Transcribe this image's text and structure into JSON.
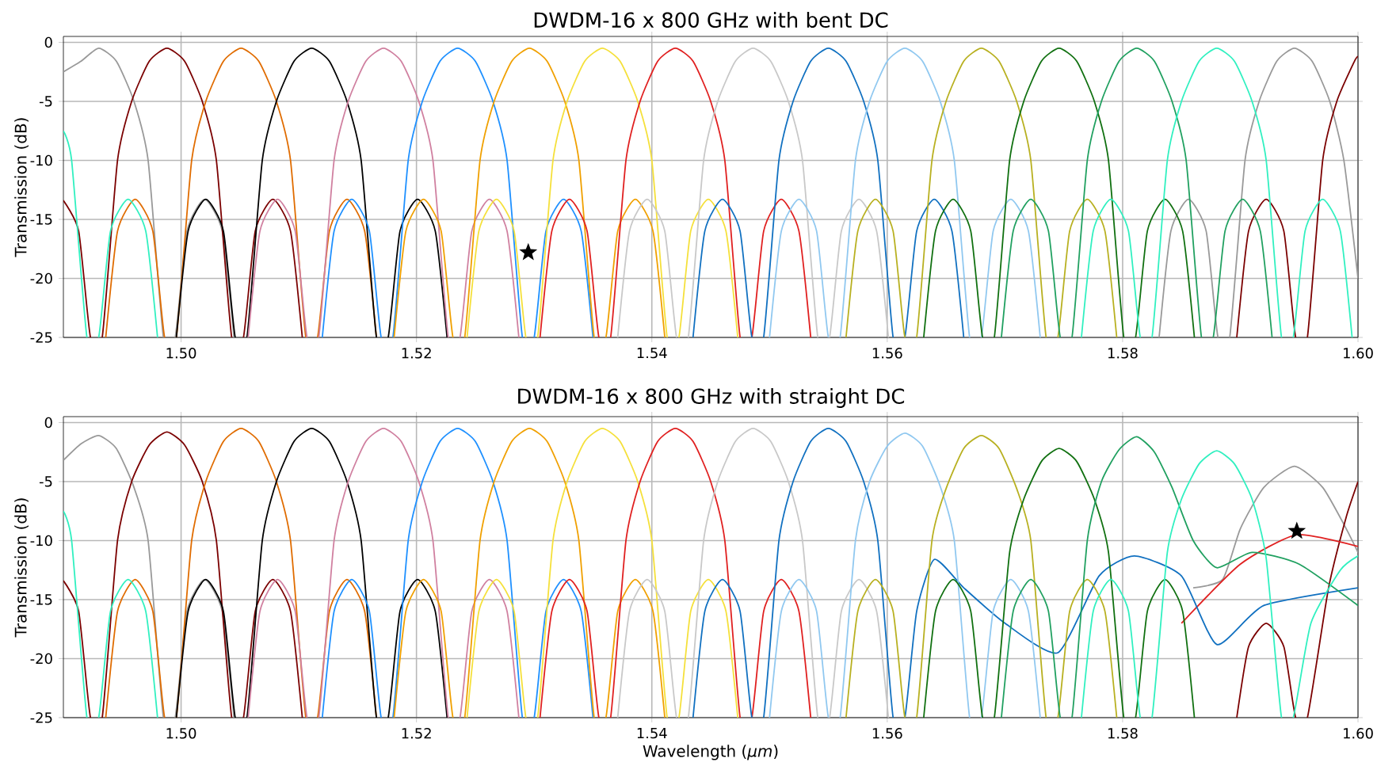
{
  "chart_data": [
    {
      "type": "line",
      "title": "DWDM-16 x 800 GHz with bent DC",
      "ylabel": "Transmission (dB)",
      "xlim": [
        1.49,
        1.6
      ],
      "ylim": [
        -25,
        0.5
      ],
      "xticks": [
        {
          "value": 1.5,
          "label": "1.50"
        },
        {
          "value": 1.52,
          "label": "1.52"
        },
        {
          "value": 1.54,
          "label": "1.54"
        },
        {
          "value": 1.56,
          "label": "1.56"
        },
        {
          "value": 1.58,
          "label": "1.58"
        },
        {
          "value": 1.6,
          "label": "1.60"
        }
      ],
      "yticks": [
        -25,
        -20,
        -15,
        -10,
        -5,
        0
      ],
      "grid": true,
      "line_style": "solid",
      "series": [
        {
          "color": "#999999",
          "x": [
            1.49,
            1.4915,
            1.493,
            1.4945,
            1.496,
            1.4972,
            1.4985,
            1.4995,
            1.5005,
            1.502,
            1.5035,
            1.5045,
            null,
            1.5831,
            1.5841,
            1.5856,
            1.5871,
            1.5881,
            1.5891,
            1.5904,
            1.5916,
            1.5931,
            1.5946,
            1.5961,
            1.5976,
            1.5988,
            1.6
          ],
          "values": [
            -2.5,
            -1.6,
            -0.5,
            -1.6,
            -5,
            -10,
            -25,
            -25,
            -16,
            -13.3,
            -16,
            -25,
            null,
            -25,
            -16,
            -13.3,
            -16,
            -25,
            -25,
            -10,
            -5,
            -1.6,
            -0.5,
            -1.6,
            -5,
            -10,
            -20
          ]
        },
        {
          "color": "#7b0000",
          "x": [
            1.49,
            1.4913,
            1.4923,
            1.4933,
            1.4946,
            1.4958,
            1.4973,
            1.4988,
            1.5003,
            1.5018,
            1.503,
            1.5043,
            1.5053,
            1.5063,
            1.5078,
            1.5093,
            1.5103,
            null,
            1.5897,
            1.5907,
            1.5922,
            1.5937,
            1.5947,
            1.5957,
            1.597,
            1.5982,
            1.5997,
            1.6
          ],
          "values": [
            -13.4,
            -16,
            -25,
            -25,
            -10,
            -5,
            -1.6,
            -0.5,
            -1.6,
            -5,
            -10,
            -25,
            -25,
            -16,
            -13.3,
            -16,
            -25,
            null,
            -25,
            -16,
            -13.3,
            -16,
            -25,
            -25,
            -10,
            -5,
            -1.6,
            -1.2
          ]
        },
        {
          "color": "#e06c00",
          "x": [
            1.4936,
            1.4946,
            1.4961,
            1.4976,
            1.4986,
            1.4996,
            1.5009,
            1.5021,
            1.5036,
            1.5051,
            1.5066,
            1.5081,
            1.5093,
            1.5106,
            1.5116,
            1.5126,
            1.5141,
            1.5156,
            1.5166
          ],
          "values": [
            -25,
            -16,
            -13.3,
            -16,
            -25,
            -25,
            -10,
            -5,
            -1.6,
            -0.5,
            -1.6,
            -5,
            -10,
            -25,
            -25,
            -16,
            -13.3,
            -16,
            -25
          ]
        },
        {
          "color": "#000000",
          "x": [
            1.4996,
            1.5006,
            1.5021,
            1.5036,
            1.5046,
            1.5056,
            1.5069,
            1.5081,
            1.5096,
            1.5111,
            1.5126,
            1.5141,
            1.5153,
            1.5166,
            1.5176,
            1.5186,
            1.5201,
            1.5216,
            1.5226
          ],
          "values": [
            -25,
            -16,
            -13.3,
            -16,
            -25,
            -25,
            -10,
            -5,
            -1.6,
            -0.5,
            -1.6,
            -5,
            -10,
            -25,
            -25,
            -16,
            -13.3,
            -16,
            -25
          ]
        },
        {
          "color": "#d080a0",
          "x": [
            1.5057,
            1.5067,
            1.5082,
            1.5097,
            1.5107,
            1.5117,
            1.513,
            1.5142,
            1.5157,
            1.5172,
            1.5187,
            1.5202,
            1.5214,
            1.5227,
            1.5237,
            1.5247,
            1.5262,
            1.5277,
            1.5287
          ],
          "values": [
            -25,
            -16,
            -13.3,
            -16,
            -25,
            -25,
            -10,
            -5,
            -1.6,
            -0.5,
            -1.6,
            -5,
            -10,
            -25,
            -25,
            -16,
            -13.3,
            -16,
            -25
          ]
        },
        {
          "color": "#1e90ff",
          "x": [
            1.512,
            1.513,
            1.5145,
            1.516,
            1.517,
            1.518,
            1.5193,
            1.5205,
            1.522,
            1.5235,
            1.525,
            1.5265,
            1.5277,
            1.529,
            1.53,
            1.531,
            1.5325,
            1.534,
            1.535
          ],
          "values": [
            -25,
            -16,
            -13.3,
            -16,
            -25,
            -25,
            -10,
            -5,
            -1.6,
            -0.5,
            -1.6,
            -5,
            -10,
            -25,
            -25,
            -16,
            -13.3,
            -16,
            -25
          ]
        },
        {
          "color": "#f0a000",
          "x": [
            1.5181,
            1.5191,
            1.5206,
            1.5221,
            1.5231,
            1.5241,
            1.5254,
            1.5266,
            1.5281,
            1.5296,
            1.5311,
            1.5326,
            1.5338,
            1.5351,
            1.5361,
            1.5371,
            1.5386,
            1.5401,
            1.5411
          ],
          "values": [
            -25,
            -16,
            -13.3,
            -16,
            -25,
            -25,
            -10,
            -5,
            -1.6,
            -0.5,
            -1.6,
            -5,
            -10,
            -25,
            -25,
            -16,
            -13.3,
            -16,
            -25
          ]
        },
        {
          "color": "#f5e03a",
          "x": [
            1.5243,
            1.5253,
            1.5268,
            1.5283,
            1.5293,
            1.5303,
            1.5316,
            1.5328,
            1.5343,
            1.5358,
            1.5373,
            1.5388,
            1.54,
            1.5413,
            1.5423,
            1.5433,
            1.5448,
            1.5463,
            1.5473
          ],
          "values": [
            -25,
            -16,
            -13.3,
            -16,
            -25,
            -25,
            -10,
            -5,
            -1.6,
            -0.5,
            -1.6,
            -5,
            -10,
            -25,
            -25,
            -16,
            -13.3,
            -16,
            -25
          ]
        },
        {
          "color": "#e02020",
          "x": [
            1.5305,
            1.5315,
            1.533,
            1.5345,
            1.5355,
            1.5365,
            1.5378,
            1.539,
            1.5405,
            1.542,
            1.5435,
            1.545,
            1.5462,
            1.5475,
            1.5485,
            1.5495,
            1.551,
            1.5525,
            1.5535
          ],
          "values": [
            -25,
            -16,
            -13.3,
            -16,
            -25,
            -25,
            -10,
            -5,
            -1.6,
            -0.5,
            -1.6,
            -5,
            -10,
            -25,
            -25,
            -16,
            -13.3,
            -16,
            -25
          ]
        },
        {
          "color": "#c8c8c8",
          "x": [
            1.5371,
            1.5381,
            1.5396,
            1.5411,
            1.5421,
            1.5431,
            1.5444,
            1.5456,
            1.5471,
            1.5486,
            1.5501,
            1.5516,
            1.5528,
            1.5541,
            1.5551,
            1.5561,
            1.5576,
            1.5591,
            1.5601
          ],
          "values": [
            -25,
            -16,
            -13.3,
            -16,
            -25,
            -25,
            -10,
            -5,
            -1.6,
            -0.5,
            -1.6,
            -5,
            -10,
            -25,
            -25,
            -16,
            -13.3,
            -16,
            -25
          ]
        },
        {
          "color": "#1070c0",
          "x": [
            1.5435,
            1.5445,
            1.546,
            1.5475,
            1.5485,
            1.5495,
            1.5508,
            1.552,
            1.5535,
            1.555,
            1.5565,
            1.558,
            1.5592,
            1.5605,
            1.5615,
            1.5625,
            1.564,
            1.5655,
            1.5665
          ],
          "values": [
            -25,
            -16,
            -13.3,
            -16,
            -25,
            -25,
            -10,
            -5,
            -1.6,
            -0.5,
            -1.6,
            -5,
            -10,
            -25,
            -25,
            -16,
            -13.3,
            -16,
            -25
          ]
        },
        {
          "color": "#90c8f0",
          "x": [
            1.55,
            1.551,
            1.5525,
            1.554,
            1.555,
            1.556,
            1.5573,
            1.5585,
            1.56,
            1.5615,
            1.563,
            1.5645,
            1.5657,
            1.567,
            1.568,
            1.569,
            1.5705,
            1.572,
            1.573
          ],
          "values": [
            -25,
            -16,
            -13.3,
            -16,
            -25,
            -25,
            -10,
            -5,
            -1.6,
            -0.5,
            -1.6,
            -5,
            -10,
            -25,
            -25,
            -16,
            -13.3,
            -16,
            -25
          ]
        },
        {
          "color": "#b8b020",
          "x": [
            1.5565,
            1.5575,
            1.559,
            1.5605,
            1.5615,
            1.5625,
            1.5638,
            1.565,
            1.5665,
            1.568,
            1.5695,
            1.571,
            1.5722,
            1.5735,
            1.5745,
            1.5755,
            1.577,
            1.5785,
            1.5795
          ],
          "values": [
            -25,
            -16,
            -13.3,
            -16,
            -25,
            -25,
            -10,
            -5,
            -1.6,
            -0.5,
            -1.6,
            -5,
            -10,
            -25,
            -25,
            -16,
            -13.3,
            -16,
            -25
          ]
        },
        {
          "color": "#107010",
          "x": [
            1.5631,
            1.5641,
            1.5656,
            1.5671,
            1.5681,
            1.5691,
            1.5704,
            1.5716,
            1.5731,
            1.5746,
            1.5761,
            1.5776,
            1.5788,
            1.5801,
            1.5811,
            1.5821,
            1.5836,
            1.5851,
            1.5861
          ],
          "values": [
            -25,
            -16,
            -13.3,
            -16,
            -25,
            -25,
            -10,
            -5,
            -1.6,
            -0.5,
            -1.6,
            -5,
            -10,
            -25,
            -25,
            -16,
            -13.3,
            -16,
            -25
          ]
        },
        {
          "color": "#20a060",
          "x": [
            1.5697,
            1.5707,
            1.5722,
            1.5737,
            1.5747,
            1.5757,
            1.577,
            1.5782,
            1.5797,
            1.5812,
            1.5827,
            1.5842,
            1.5854,
            1.5867,
            1.5877,
            1.5887,
            1.5902,
            1.5917,
            1.5927
          ],
          "values": [
            -25,
            -16,
            -13.3,
            -16,
            -25,
            -25,
            -10,
            -5,
            -1.6,
            -0.5,
            -1.6,
            -5,
            -10,
            -25,
            -25,
            -16,
            -13.3,
            -16,
            -25
          ]
        },
        {
          "color": "#30f0c0",
          "x": [
            1.49,
            1.4907,
            1.492,
            1.493,
            1.494,
            1.4955,
            1.497,
            1.498,
            null,
            1.5765,
            1.5775,
            1.579,
            1.5805,
            1.5815,
            1.5825,
            1.5838,
            1.585,
            1.5865,
            1.588,
            1.5895,
            1.591,
            1.5922,
            1.5935,
            1.5945,
            1.5955,
            1.597,
            1.5985,
            1.5995
          ],
          "values": [
            -7.5,
            -10,
            -25,
            -25,
            -16,
            -13.3,
            -16,
            -25,
            null,
            -25,
            -16,
            -13.3,
            -16,
            -25,
            -25,
            -10,
            -5,
            -1.6,
            -0.5,
            -1.6,
            -5,
            -10,
            -25,
            -25,
            -16,
            -13.3,
            -16,
            -25
          ]
        },
        {
          "type": "scatter",
          "marker": "star",
          "color": "#000000",
          "x": [
            1.5295
          ],
          "values": [
            -17.8
          ]
        }
      ]
    },
    {
      "type": "line",
      "title": "DWDM-16 x 800 GHz with straight DC",
      "xlabel": "Wavelength (*μm*)",
      "ylabel": "Transmission (dB)",
      "xlim": [
        1.49,
        1.6
      ],
      "ylim": [
        -25,
        0.5
      ],
      "xticks": [
        {
          "value": 1.5,
          "label": "1.50"
        },
        {
          "value": 1.52,
          "label": "1.52"
        },
        {
          "value": 1.54,
          "label": "1.54"
        },
        {
          "value": 1.56,
          "label": "1.56"
        },
        {
          "value": 1.58,
          "label": "1.58"
        },
        {
          "value": 1.6,
          "label": "1.60"
        }
      ],
      "yticks": [
        -25,
        -20,
        -15,
        -10,
        -5,
        0
      ],
      "grid": true,
      "line_style": "solid",
      "series": [
        {
          "color": "#999999",
          "x": [
            1.49,
            1.4915,
            1.493,
            1.4945,
            1.496,
            1.4972,
            1.4985,
            1.4995,
            1.5005,
            1.502,
            1.5035,
            1.5045,
            null,
            1.586,
            1.5885,
            1.59,
            1.592,
            1.5946,
            1.597,
            1.599,
            1.6
          ],
          "values": [
            -3.2,
            -1.8,
            -1.1,
            -2.2,
            -5.5,
            -10,
            -25,
            -25,
            -16,
            -13.3,
            -16,
            -25,
            null,
            -14,
            -13.3,
            -9,
            -5.5,
            -3.7,
            -5.5,
            -9,
            -11
          ]
        },
        {
          "color": "#7b0000",
          "x": [
            1.49,
            1.4913,
            1.4923,
            1.4933,
            1.4946,
            1.4958,
            1.4973,
            1.4988,
            1.5003,
            1.5018,
            1.503,
            1.5043,
            1.5053,
            1.5063,
            1.5078,
            1.5093,
            1.5103,
            null,
            1.5897,
            1.5907,
            1.5922,
            1.5937,
            1.5947,
            1.5957,
            1.5975,
            1.599,
            1.6
          ],
          "values": [
            -13.4,
            -16,
            -25,
            -25,
            -10,
            -5,
            -1.9,
            -0.8,
            -1.9,
            -5,
            -10,
            -25,
            -25,
            -16,
            -13.3,
            -16,
            -25,
            null,
            -25,
            -19,
            -17,
            -19,
            -25,
            -25,
            -14,
            -8,
            -5
          ]
        },
        {
          "color": "#e06c00",
          "x": [
            1.4936,
            1.4946,
            1.4961,
            1.4976,
            1.4986,
            1.4996,
            1.5009,
            1.5021,
            1.5036,
            1.5051,
            1.5066,
            1.5081,
            1.5093,
            1.5106,
            1.5116,
            1.5126,
            1.5141,
            1.5156,
            1.5166
          ],
          "values": [
            -25,
            -16,
            -13.3,
            -16,
            -25,
            -25,
            -10,
            -5,
            -1.6,
            -0.5,
            -1.6,
            -5,
            -10,
            -25,
            -25,
            -16,
            -13.3,
            -16,
            -25
          ]
        },
        {
          "color": "#000000",
          "x": [
            1.4996,
            1.5006,
            1.5021,
            1.5036,
            1.5046,
            1.5056,
            1.5069,
            1.5081,
            1.5096,
            1.5111,
            1.5126,
            1.5141,
            1.5153,
            1.5166,
            1.5176,
            1.5186,
            1.5201,
            1.5216,
            1.5226
          ],
          "values": [
            -25,
            -16,
            -13.3,
            -16,
            -25,
            -25,
            -10,
            -5,
            -1.6,
            -0.5,
            -1.6,
            -5,
            -10,
            -25,
            -25,
            -16,
            -13.3,
            -16,
            -25
          ]
        },
        {
          "color": "#d080a0",
          "x": [
            1.5057,
            1.5067,
            1.5082,
            1.5097,
            1.5107,
            1.5117,
            1.513,
            1.5142,
            1.5157,
            1.5172,
            1.5187,
            1.5202,
            1.5214,
            1.5227,
            1.5237,
            1.5247,
            1.5262,
            1.5277,
            1.5287
          ],
          "values": [
            -25,
            -16,
            -13.3,
            -16,
            -25,
            -25,
            -10,
            -5,
            -1.6,
            -0.5,
            -1.6,
            -5,
            -10,
            -25,
            -25,
            -16,
            -13.3,
            -16,
            -25
          ]
        },
        {
          "color": "#1e90ff",
          "x": [
            1.512,
            1.513,
            1.5145,
            1.516,
            1.517,
            1.518,
            1.5193,
            1.5205,
            1.522,
            1.5235,
            1.525,
            1.5265,
            1.5277,
            1.529,
            1.53,
            1.531,
            1.5325,
            1.534,
            1.535
          ],
          "values": [
            -25,
            -16,
            -13.3,
            -16,
            -25,
            -25,
            -10,
            -5,
            -1.6,
            -0.5,
            -1.6,
            -5,
            -10,
            -25,
            -25,
            -16,
            -13.3,
            -16,
            -25
          ]
        },
        {
          "color": "#f0a000",
          "x": [
            1.5181,
            1.5191,
            1.5206,
            1.5221,
            1.5231,
            1.5241,
            1.5254,
            1.5266,
            1.5281,
            1.5296,
            1.5311,
            1.5326,
            1.5338,
            1.5351,
            1.5361,
            1.5371,
            1.5386,
            1.5401,
            1.5411
          ],
          "values": [
            -25,
            -16,
            -13.3,
            -16,
            -25,
            -25,
            -10,
            -5,
            -1.6,
            -0.5,
            -1.6,
            -5,
            -10,
            -25,
            -25,
            -16,
            -13.3,
            -16,
            -25
          ]
        },
        {
          "color": "#f5e03a",
          "x": [
            1.5243,
            1.5253,
            1.5268,
            1.5283,
            1.5293,
            1.5303,
            1.5316,
            1.5328,
            1.5343,
            1.5358,
            1.5373,
            1.5388,
            1.54,
            1.5413,
            1.5423,
            1.5433,
            1.5448,
            1.5463,
            1.5473
          ],
          "values": [
            -25,
            -16,
            -13.3,
            -16,
            -25,
            -25,
            -10,
            -5,
            -1.6,
            -0.5,
            -1.6,
            -5,
            -10,
            -25,
            -25,
            -16,
            -13.3,
            -16,
            -25
          ]
        },
        {
          "color": "#e02020",
          "x": [
            1.5305,
            1.5315,
            1.533,
            1.5345,
            1.5355,
            1.5365,
            1.5378,
            1.539,
            1.5405,
            1.542,
            1.5435,
            1.545,
            1.5462,
            1.5475,
            1.5485,
            1.5495,
            1.551,
            1.5525,
            1.5535,
            null,
            1.585,
            1.59,
            1.5948,
            1.6
          ],
          "values": [
            -25,
            -16,
            -13.3,
            -16,
            -25,
            -25,
            -10,
            -5,
            -1.6,
            -0.5,
            -1.6,
            -5,
            -10,
            -25,
            -25,
            -16,
            -13.3,
            -16,
            -25,
            null,
            -17,
            -12,
            -9.5,
            -10.5
          ]
        },
        {
          "color": "#c8c8c8",
          "x": [
            1.5371,
            1.5381,
            1.5396,
            1.5411,
            1.5421,
            1.5431,
            1.5444,
            1.5456,
            1.5471,
            1.5486,
            1.5501,
            1.5516,
            1.5528,
            1.5541,
            1.5551,
            1.5561,
            1.5576,
            1.5591,
            1.5601
          ],
          "values": [
            -25,
            -16,
            -13.3,
            -16,
            -25,
            -25,
            -10,
            -5,
            -1.6,
            -0.5,
            -1.6,
            -5,
            -10,
            -25,
            -25,
            -16,
            -13.3,
            -16,
            -25
          ]
        },
        {
          "color": "#1070c0",
          "x": [
            1.5435,
            1.5445,
            1.546,
            1.5475,
            1.5485,
            1.5495,
            1.5508,
            1.552,
            1.5535,
            1.555,
            1.5565,
            1.558,
            1.5592,
            1.5605,
            1.5615,
            1.5625,
            1.564,
            1.5665,
            1.57,
            1.5745,
            1.578,
            1.581,
            1.585,
            1.588,
            1.592,
            1.6
          ],
          "values": [
            -25,
            -16,
            -13.3,
            -16,
            -25,
            -25,
            -10,
            -5,
            -1.6,
            -0.5,
            -1.6,
            -5,
            -10,
            -25,
            -25,
            -16,
            -11.6,
            -14,
            -17,
            -19.5,
            -13,
            -11.3,
            -13,
            -18.8,
            -15.5,
            -14
          ]
        },
        {
          "color": "#90c8f0",
          "x": [
            1.55,
            1.551,
            1.5525,
            1.554,
            1.555,
            1.556,
            1.5573,
            1.5585,
            1.56,
            1.5615,
            1.563,
            1.5645,
            1.5657,
            1.567,
            1.568,
            1.569,
            1.5705,
            1.572,
            1.573
          ],
          "values": [
            -25,
            -16,
            -13.3,
            -16,
            -25,
            -25,
            -10,
            -5,
            -2,
            -0.9,
            -2,
            -5.4,
            -10,
            -25,
            -25,
            -16,
            -13.3,
            -16,
            -25
          ]
        },
        {
          "color": "#b8b020",
          "x": [
            1.5565,
            1.5575,
            1.559,
            1.5605,
            1.5615,
            1.5625,
            1.5638,
            1.565,
            1.5665,
            1.568,
            1.5695,
            1.571,
            1.5722,
            1.5735,
            1.5745,
            1.5755,
            1.577,
            1.5785,
            1.5795
          ],
          "values": [
            -25,
            -16,
            -13.3,
            -16,
            -25,
            -25,
            -10,
            -5.6,
            -2.2,
            -1.1,
            -2.2,
            -5.6,
            -10,
            -25,
            -25,
            -16,
            -13.3,
            -16,
            -25
          ]
        },
        {
          "color": "#107010",
          "x": [
            1.5631,
            1.5641,
            1.5656,
            1.5671,
            1.5681,
            1.5691,
            1.5704,
            1.5716,
            1.5731,
            1.5746,
            1.5761,
            1.5776,
            1.5788,
            1.5801,
            1.5811,
            1.5821,
            1.5836,
            1.5851,
            1.5861
          ],
          "values": [
            -25,
            -16,
            -13.3,
            -16,
            -25,
            -25,
            -11,
            -6.5,
            -3.3,
            -2.2,
            -3.3,
            -6.5,
            -11,
            -25,
            -25,
            -16,
            -13.3,
            -16,
            -25
          ]
        },
        {
          "color": "#20a060",
          "x": [
            1.5697,
            1.5707,
            1.5722,
            1.5737,
            1.5747,
            1.5757,
            1.577,
            1.5782,
            1.5797,
            1.5812,
            1.5827,
            1.5842,
            1.586,
            1.588,
            1.591,
            1.595,
            1.6
          ],
          "values": [
            -25,
            -16,
            -13.3,
            -16,
            -25,
            -25,
            -10,
            -5,
            -2.3,
            -1.2,
            -2.5,
            -5.5,
            -10,
            -12.3,
            -11,
            -12,
            -15.5
          ]
        },
        {
          "color": "#30f0c0",
          "x": [
            1.49,
            1.4907,
            1.492,
            1.493,
            1.494,
            1.4955,
            1.497,
            1.498,
            null,
            1.5765,
            1.5775,
            1.579,
            1.5805,
            1.5815,
            1.5825,
            1.5838,
            1.585,
            1.5865,
            1.588,
            1.5895,
            1.591,
            1.5922,
            1.5935,
            1.5945,
            1.596,
            1.5985,
            1.6
          ],
          "values": [
            -7.5,
            -10,
            -25,
            -25,
            -16,
            -13.3,
            -16,
            -25,
            null,
            -25,
            -16,
            -13.3,
            -16,
            -25,
            -25,
            -11,
            -6.5,
            -3.5,
            -2.4,
            -3.5,
            -6.5,
            -11.5,
            -25,
            -25,
            -17,
            -12.5,
            -11.3
          ]
        },
        {
          "type": "scatter",
          "marker": "star",
          "color": "#000000",
          "x": [
            1.5948
          ],
          "values": [
            -9.2
          ]
        }
      ]
    }
  ]
}
